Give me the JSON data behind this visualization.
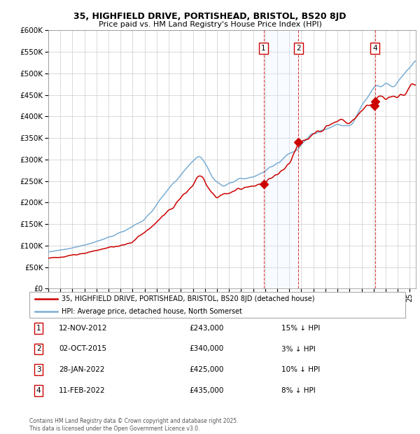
{
  "title": "35, HIGHFIELD DRIVE, PORTISHEAD, BRISTOL, BS20 8JD",
  "subtitle": "Price paid vs. HM Land Registry's House Price Index (HPI)",
  "legend_label_red": "35, HIGHFIELD DRIVE, PORTISHEAD, BRISTOL, BS20 8JD (detached house)",
  "legend_label_blue": "HPI: Average price, detached house, North Somerset",
  "footer": "Contains HM Land Registry data © Crown copyright and database right 2025.\nThis data is licensed under the Open Government Licence v3.0.",
  "transactions": [
    {
      "num": 1,
      "date": "12-NOV-2012",
      "price": 243000,
      "pct": "15%",
      "direction": "↓"
    },
    {
      "num": 2,
      "date": "02-OCT-2015",
      "price": 340000,
      "pct": "3%",
      "direction": "↓"
    },
    {
      "num": 3,
      "date": "28-JAN-2022",
      "price": 425000,
      "pct": "10%",
      "direction": "↓"
    },
    {
      "num": 4,
      "date": "11-FEB-2022",
      "price": 435000,
      "pct": "8%",
      "direction": "↓"
    }
  ],
  "transaction_dates_decimal": [
    2012.87,
    2015.75,
    2022.07,
    2022.11
  ],
  "shaded_region": [
    2012.87,
    2015.75
  ],
  "vertical_lines": [
    2012.87,
    2015.75,
    2022.11
  ],
  "ylim": [
    0,
    600000
  ],
  "yticks": [
    0,
    50000,
    100000,
    150000,
    200000,
    250000,
    300000,
    350000,
    400000,
    450000,
    500000,
    550000,
    600000
  ],
  "red_color": "#cc0000",
  "blue_color": "#7aadd4",
  "background_color": "#ffffff",
  "grid_color": "#cccccc",
  "label_box_color": "#ffffff",
  "label_box_edge": "#cc0000",
  "shaded_color": "#ddeeff",
  "xmin": 1995,
  "xmax": 2025.5,
  "hpi_anchors_t": [
    1995.0,
    1997,
    1999,
    2001,
    2003,
    2004,
    2005,
    2006,
    2007,
    2007.5,
    2008,
    2008.5,
    2009,
    2009.5,
    2010,
    2011,
    2012,
    2012.87,
    2013,
    2014,
    2015,
    2015.75,
    2016,
    2017,
    2018,
    2019,
    2020,
    2020.5,
    2021,
    2021.5,
    2022,
    2022.5,
    2023,
    2023.5,
    2024,
    2024.5,
    2025.4
  ],
  "hpi_anchors_v": [
    85000,
    95000,
    108000,
    130000,
    160000,
    195000,
    230000,
    265000,
    300000,
    310000,
    295000,
    265000,
    245000,
    238000,
    248000,
    255000,
    262000,
    268000,
    272000,
    292000,
    315000,
    323000,
    340000,
    358000,
    370000,
    380000,
    378000,
    395000,
    420000,
    445000,
    465000,
    480000,
    475000,
    468000,
    480000,
    495000,
    525000
  ],
  "prop_anchors_t": [
    1995.0,
    1996,
    1997,
    1998,
    1999,
    2000,
    2001,
    2002,
    2003,
    2004,
    2005,
    2006,
    2007,
    2007.3,
    2007.7,
    2008,
    2008.5,
    2009,
    2009.3,
    2009.6,
    2010,
    2011,
    2012,
    2012.87,
    2013,
    2014,
    2015,
    2015.75,
    2016,
    2017,
    2018,
    2019,
    2020,
    2020.5,
    2021,
    2021.5,
    2022.0,
    2022.07,
    2022.11,
    2022.5,
    2023,
    2023.5,
    2024,
    2024.5,
    2025.4
  ],
  "prop_anchors_v": [
    72000,
    72000,
    78000,
    82000,
    88000,
    96000,
    100000,
    108000,
    130000,
    155000,
    182000,
    210000,
    240000,
    258000,
    263000,
    250000,
    225000,
    210000,
    215000,
    220000,
    225000,
    232000,
    240000,
    243000,
    248000,
    265000,
    290000,
    340000,
    340000,
    360000,
    375000,
    385000,
    385000,
    398000,
    415000,
    428000,
    425000,
    425000,
    435000,
    445000,
    445000,
    440000,
    450000,
    455000,
    478000
  ]
}
